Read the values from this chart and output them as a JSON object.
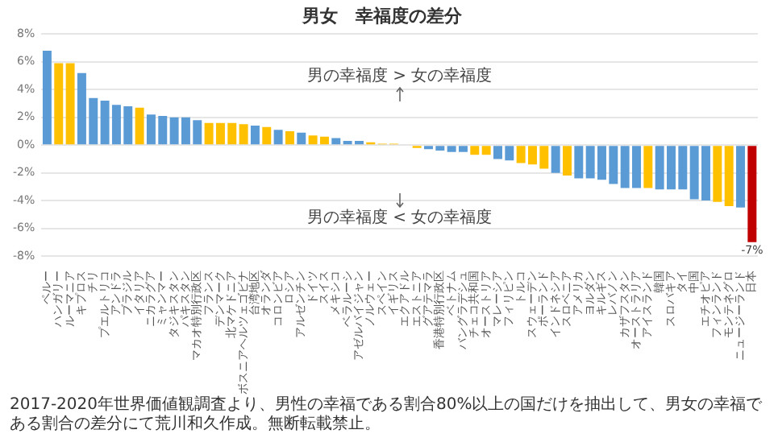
{
  "chart_data": {
    "type": "bar",
    "title": "男女　幸福度の差分",
    "categories": [
      "ペルー",
      "ハンガリー",
      "ルーマニア",
      "キプロス",
      "チリ",
      "プエルトリコ",
      "アンドラ",
      "ブラジル",
      "イタリア",
      "ニカラグア",
      "ミャンマー",
      "タジキスタン",
      "パキスタン",
      "マカオ特別行政区",
      "フランス",
      "デンマーク",
      "北マケドニア",
      "ボスニアヘルツェゴビナ",
      "台湾地区",
      "オランダ",
      "コロンビア",
      "ロシア",
      "アルゼンチン",
      "ドイツ",
      "スイス",
      "メキシコ",
      "ベラルーシ",
      "アゼルバイジャン",
      "ノルウェー",
      "スペイン",
      "イギリス",
      "エクアドル",
      "エストニア",
      "グアテマラ",
      "香港特別行政区",
      "ベトナム",
      "バングラデシュ",
      "チェコ共和国",
      "オーストリア",
      "マレーシア",
      "フィリピン",
      "トルコ",
      "スウェーデン",
      "ポーランド",
      "インドネシア",
      "スロベニア",
      "アメリカ",
      "ヨルダン",
      "キルギス",
      "レバノン",
      "カザフスタン",
      "オーストラリア",
      "アイスランド",
      "韓国",
      "スロバキア",
      "タイ",
      "中国",
      "エチオピア",
      "フィンランド",
      "モンテネグロ",
      "ニュージーランド",
      "日本"
    ],
    "values": [
      6.8,
      5.9,
      5.9,
      5.2,
      3.4,
      3.2,
      2.9,
      2.8,
      2.7,
      2.2,
      2.1,
      2.0,
      2.0,
      1.8,
      1.6,
      1.6,
      1.6,
      1.5,
      1.4,
      1.3,
      1.1,
      1.0,
      0.9,
      0.7,
      0.6,
      0.5,
      0.3,
      0.3,
      0.2,
      0.1,
      0.1,
      0,
      -0.2,
      -0.3,
      -0.4,
      -0.5,
      -0.5,
      -0.7,
      -0.7,
      -1.0,
      -1.1,
      -1.3,
      -1.4,
      -1.7,
      -2.0,
      -2.2,
      -2.4,
      -2.4,
      -2.5,
      -2.8,
      -3.1,
      -3.1,
      -3.1,
      -3.2,
      -3.2,
      -3.2,
      -3.9,
      -4.0,
      -4.1,
      -4.4,
      -4.5,
      -7
    ],
    "colors": [
      "#5b9bd5",
      "#ffc000",
      "#ffc000",
      "#5b9bd5",
      "#5b9bd5",
      "#5b9bd5",
      "#5b9bd5",
      "#5b9bd5",
      "#ffc000",
      "#5b9bd5",
      "#5b9bd5",
      "#5b9bd5",
      "#5b9bd5",
      "#5b9bd5",
      "#ffc000",
      "#ffc000",
      "#ffc000",
      "#ffc000",
      "#5b9bd5",
      "#ffc000",
      "#5b9bd5",
      "#ffc000",
      "#5b9bd5",
      "#ffc000",
      "#ffc000",
      "#5b9bd5",
      "#5b9bd5",
      "#5b9bd5",
      "#ffc000",
      "#ffc000",
      "#ffc000",
      "#ffc000",
      "#ffc000",
      "#5b9bd5",
      "#5b9bd5",
      "#5b9bd5",
      "#5b9bd5",
      "#ffc000",
      "#ffc000",
      "#5b9bd5",
      "#5b9bd5",
      "#ffc000",
      "#ffc000",
      "#ffc000",
      "#5b9bd5",
      "#ffc000",
      "#5b9bd5",
      "#5b9bd5",
      "#5b9bd5",
      "#5b9bd5",
      "#5b9bd5",
      "#5b9bd5",
      "#ffc000",
      "#5b9bd5",
      "#5b9bd5",
      "#5b9bd5",
      "#5b9bd5",
      "#5b9bd5",
      "#ffc000",
      "#ffc000",
      "#5b9bd5",
      "#c00000"
    ],
    "value_labels": [
      null,
      null,
      null,
      null,
      null,
      null,
      null,
      null,
      null,
      null,
      null,
      null,
      null,
      null,
      null,
      null,
      null,
      null,
      null,
      null,
      null,
      null,
      null,
      null,
      null,
      null,
      null,
      null,
      null,
      null,
      null,
      null,
      null,
      null,
      null,
      null,
      null,
      null,
      null,
      null,
      null,
      null,
      null,
      null,
      null,
      null,
      null,
      null,
      null,
      null,
      null,
      null,
      null,
      null,
      null,
      null,
      null,
      null,
      null,
      null,
      null,
      "-7%"
    ],
    "ylim": [
      -8,
      8
    ],
    "yticks": [
      {
        "value": -8,
        "label": "-8%"
      },
      {
        "value": -6,
        "label": "-6%"
      },
      {
        "value": -4,
        "label": "-4%"
      },
      {
        "value": -2,
        "label": "-2%"
      },
      {
        "value": 0,
        "label": "0%"
      },
      {
        "value": 2,
        "label": "2%"
      },
      {
        "value": 4,
        "label": "4%"
      },
      {
        "value": 6,
        "label": "6%"
      },
      {
        "value": 8,
        "label": "8%"
      }
    ],
    "grid": "y",
    "annotations": [
      "男の幸福度 > 女の幸福度",
      "男の幸福度 < 女の幸福度",
      "2017-2020年世界価値観調査より、男性の幸福である割合80%以上の国だけを抽出して、男女の幸福である割合の差分にて荒川和久作成。無断転載禁止。"
    ]
  }
}
